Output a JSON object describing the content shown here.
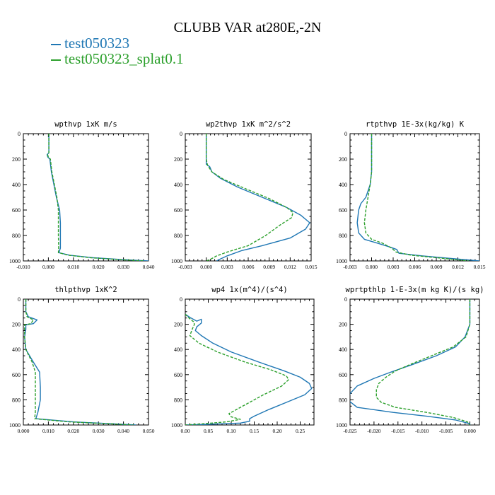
{
  "title": "CLUBB VAR at280E,-2N",
  "legend": [
    {
      "label": "test050323",
      "color": "#1f77b4"
    },
    {
      "label": "test050323_splat0.1",
      "color": "#2ca02c"
    }
  ],
  "chart_data": [
    {
      "type": "line",
      "title": "wpthvp  1xK m/s",
      "xlim": [
        -0.01,
        0.04
      ],
      "xticks": [
        "-0.010",
        "0.000",
        "0.010",
        "0.020",
        "0.030",
        "0.040"
      ],
      "ylim": [
        1000,
        0
      ],
      "yticks": [
        "0",
        "200",
        "400",
        "600",
        "800",
        "1000"
      ],
      "series": [
        {
          "color": "#1f77b4",
          "dash": false,
          "points": [
            [
              0.0002,
              0
            ],
            [
              0.0002,
              150
            ],
            [
              -0.0005,
              165
            ],
            [
              -0.0002,
              185
            ],
            [
              0.0006,
              200
            ],
            [
              0.0012,
              300
            ],
            [
              0.0022,
              400
            ],
            [
              0.0032,
              500
            ],
            [
              0.0045,
              600
            ],
            [
              0.0048,
              700
            ],
            [
              0.0048,
              800
            ],
            [
              0.0048,
              900
            ],
            [
              0.0042,
              935
            ],
            [
              0.0085,
              955
            ],
            [
              0.018,
              975
            ],
            [
              0.03,
              990
            ],
            [
              0.04,
              1000
            ]
          ]
        },
        {
          "color": "#2ca02c",
          "dash": true,
          "points": [
            [
              0.0002,
              0
            ],
            [
              0.0002,
              150
            ],
            [
              -0.0003,
              165
            ],
            [
              0.0,
              185
            ],
            [
              0.0008,
              200
            ],
            [
              0.0014,
              300
            ],
            [
              0.0024,
              400
            ],
            [
              0.0034,
              500
            ],
            [
              0.004,
              600
            ],
            [
              0.004,
              700
            ],
            [
              0.004,
              800
            ],
            [
              0.0041,
              900
            ],
            [
              0.004,
              935
            ],
            [
              0.008,
              955
            ],
            [
              0.017,
              975
            ],
            [
              0.029,
              990
            ],
            [
              0.038,
              1000
            ]
          ]
        }
      ]
    },
    {
      "type": "line",
      "title": "wp2thvp  1xK m^2/s^2",
      "xlim": [
        -0.003,
        0.015
      ],
      "xticks": [
        "-0.003",
        "0.000",
        "0.003",
        "0.006",
        "0.009",
        "0.012",
        "0.015"
      ],
      "ylim": [
        1000,
        0
      ],
      "yticks": [
        "0",
        "200",
        "400",
        "600",
        "800",
        "1000"
      ],
      "series": [
        {
          "color": "#1f77b4",
          "dash": false,
          "points": [
            [
              0.0,
              0
            ],
            [
              0.0,
              240
            ],
            [
              0.0005,
              260
            ],
            [
              0.0008,
              300
            ],
            [
              0.002,
              350
            ],
            [
              0.0045,
              420
            ],
            [
              0.008,
              500
            ],
            [
              0.0115,
              580
            ],
            [
              0.0135,
              640
            ],
            [
              0.0148,
              700
            ],
            [
              0.0142,
              750
            ],
            [
              0.012,
              820
            ],
            [
              0.008,
              880
            ],
            [
              0.005,
              920
            ],
            [
              0.003,
              960
            ],
            [
              0.0018,
              990
            ],
            [
              0.0015,
              1000
            ]
          ]
        },
        {
          "color": "#2ca02c",
          "dash": true,
          "points": [
            [
              0.0,
              0
            ],
            [
              0.0,
              200
            ],
            [
              0.0002,
              250
            ],
            [
              0.0008,
              300
            ],
            [
              0.0025,
              360
            ],
            [
              0.0055,
              430
            ],
            [
              0.009,
              510
            ],
            [
              0.0115,
              580
            ],
            [
              0.0124,
              620
            ],
            [
              0.0122,
              660
            ],
            [
              0.0105,
              720
            ],
            [
              0.0085,
              800
            ],
            [
              0.006,
              880
            ],
            [
              0.003,
              930
            ],
            [
              0.0015,
              960
            ],
            [
              0.0005,
              990
            ],
            [
              0.0,
              1000
            ]
          ]
        }
      ]
    },
    {
      "type": "line",
      "title": "rtpthvp  1E-3x(kg/kg) K",
      "xlim": [
        -0.003,
        0.015
      ],
      "xticks": [
        "-0.003",
        "0.000",
        "0.003",
        "0.006",
        "0.009",
        "0.012",
        "0.015"
      ],
      "ylim": [
        1000,
        0
      ],
      "yticks": [
        "0",
        "200",
        "400",
        "600",
        "800",
        "1000"
      ],
      "series": [
        {
          "color": "#1f77b4",
          "dash": false,
          "points": [
            [
              0.0,
              0
            ],
            [
              0.0,
              300
            ],
            [
              -0.0002,
              400
            ],
            [
              -0.0008,
              500
            ],
            [
              -0.0015,
              550
            ],
            [
              -0.0018,
              600
            ],
            [
              -0.002,
              700
            ],
            [
              -0.0018,
              780
            ],
            [
              -0.001,
              830
            ],
            [
              0.0008,
              860
            ],
            [
              0.0025,
              890
            ],
            [
              0.0035,
              910
            ],
            [
              0.0038,
              940
            ],
            [
              0.007,
              960
            ],
            [
              0.012,
              985
            ],
            [
              0.015,
              1000
            ]
          ]
        },
        {
          "color": "#2ca02c",
          "dash": true,
          "points": [
            [
              0.0,
              0
            ],
            [
              0.0,
              300
            ],
            [
              -0.0002,
              400
            ],
            [
              -0.0005,
              500
            ],
            [
              -0.0008,
              600
            ],
            [
              -0.001,
              700
            ],
            [
              -0.0008,
              780
            ],
            [
              0.0,
              830
            ],
            [
              0.0015,
              860
            ],
            [
              0.0028,
              900
            ],
            [
              0.0034,
              930
            ],
            [
              0.0055,
              955
            ],
            [
              0.01,
              980
            ],
            [
              0.0135,
              1000
            ]
          ]
        }
      ]
    },
    {
      "type": "line",
      "title": "thlpthvp  1xK^2",
      "xlim": [
        0.0,
        0.05
      ],
      "xticks": [
        "0.000",
        "0.010",
        "0.020",
        "0.030",
        "0.040",
        "0.050"
      ],
      "ylim": [
        1000,
        0
      ],
      "yticks": [
        "0",
        "200",
        "400",
        "600",
        "800",
        "1000"
      ],
      "series": [
        {
          "color": "#1f77b4",
          "dash": false,
          "points": [
            [
              0.001,
              0
            ],
            [
              0.001,
              100
            ],
            [
              0.002,
              140
            ],
            [
              0.0055,
              165
            ],
            [
              0.004,
              195
            ],
            [
              0.001,
              205
            ],
            [
              0.001,
              240
            ],
            [
              0.0005,
              300
            ],
            [
              0.001,
              400
            ],
            [
              0.004,
              500
            ],
            [
              0.0065,
              580
            ],
            [
              0.0068,
              700
            ],
            [
              0.0068,
              800
            ],
            [
              0.0058,
              900
            ],
            [
              0.005,
              950
            ],
            [
              0.02,
              975
            ],
            [
              0.035,
              990
            ],
            [
              0.045,
              1000
            ]
          ]
        },
        {
          "color": "#2ca02c",
          "dash": true,
          "points": [
            [
              0.001,
              0
            ],
            [
              0.001,
              100
            ],
            [
              0.0015,
              140
            ],
            [
              0.004,
              165
            ],
            [
              0.003,
              195
            ],
            [
              0.0005,
              205
            ],
            [
              0.0005,
              240
            ],
            [
              0.0005,
              300
            ],
            [
              0.001,
              400
            ],
            [
              0.0035,
              500
            ],
            [
              0.0048,
              580
            ],
            [
              0.0048,
              700
            ],
            [
              0.0048,
              800
            ],
            [
              0.0048,
              900
            ],
            [
              0.0045,
              950
            ],
            [
              0.018,
              975
            ],
            [
              0.034,
              990
            ],
            [
              0.044,
              1000
            ]
          ]
        }
      ]
    },
    {
      "type": "line",
      "title": "wp4  1x(m^4)/(s^4)",
      "xlim": [
        0.0,
        0.28
      ],
      "xticks": [
        "0.00",
        "0.05",
        "0.10",
        "0.15",
        "0.20",
        "0.25"
      ],
      "ylim": [
        1000,
        0
      ],
      "yticks": [
        "0",
        "200",
        "400",
        "600",
        "800",
        "1000"
      ],
      "series": [
        {
          "color": "#1f77b4",
          "dash": false,
          "points": [
            [
              0.0,
              120
            ],
            [
              0.01,
              145
            ],
            [
              0.025,
              175
            ],
            [
              0.035,
              160
            ],
            [
              0.035,
              190
            ],
            [
              0.025,
              220
            ],
            [
              0.022,
              250
            ],
            [
              0.035,
              290
            ],
            [
              0.06,
              350
            ],
            [
              0.1,
              420
            ],
            [
              0.16,
              500
            ],
            [
              0.215,
              570
            ],
            [
              0.25,
              620
            ],
            [
              0.27,
              670
            ],
            [
              0.275,
              710
            ],
            [
              0.26,
              760
            ],
            [
              0.22,
              820
            ],
            [
              0.18,
              880
            ],
            [
              0.15,
              930
            ],
            [
              0.14,
              950
            ],
            [
              0.14,
              970
            ],
            [
              0.12,
              985
            ],
            [
              0.05,
              995
            ],
            [
              0.0,
              1000
            ]
          ]
        },
        {
          "color": "#2ca02c",
          "dash": true,
          "points": [
            [
              0.0,
              120
            ],
            [
              0.008,
              150
            ],
            [
              0.018,
              180
            ],
            [
              0.02,
              200
            ],
            [
              0.015,
              240
            ],
            [
              0.01,
              290
            ],
            [
              0.03,
              350
            ],
            [
              0.07,
              420
            ],
            [
              0.13,
              500
            ],
            [
              0.185,
              560
            ],
            [
              0.22,
              610
            ],
            [
              0.225,
              640
            ],
            [
              0.21,
              690
            ],
            [
              0.17,
              760
            ],
            [
              0.14,
              820
            ],
            [
              0.11,
              880
            ],
            [
              0.095,
              910
            ],
            [
              0.1,
              935
            ],
            [
              0.12,
              955
            ],
            [
              0.09,
              975
            ],
            [
              0.04,
              990
            ],
            [
              0.0,
              1000
            ]
          ]
        }
      ]
    },
    {
      "type": "line",
      "title": "wprtpthlp  1-E-3x(m kg K)/(s kg)",
      "xlim": [
        -0.025,
        0.002
      ],
      "xticks": [
        "-0.025",
        "-0.020",
        "-0.015",
        "-0.010",
        "-0.005",
        "0.000"
      ],
      "ylim": [
        1000,
        0
      ],
      "yticks": [
        "0",
        "200",
        "400",
        "600",
        "800",
        "1000"
      ],
      "series": [
        {
          "color": "#1f77b4",
          "dash": false,
          "points": [
            [
              0.0,
              0
            ],
            [
              0.0,
              200
            ],
            [
              -0.001,
              300
            ],
            [
              -0.003,
              380
            ],
            [
              -0.007,
              450
            ],
            [
              -0.012,
              520
            ],
            [
              -0.0165,
              580
            ],
            [
              -0.02,
              630
            ],
            [
              -0.0235,
              690
            ],
            [
              -0.025,
              750
            ],
            [
              -0.0255,
              800
            ],
            [
              -0.0235,
              860
            ],
            [
              -0.016,
              900
            ],
            [
              -0.009,
              930
            ],
            [
              -0.003,
              960
            ],
            [
              0.0,
              990
            ],
            [
              0.0,
              1000
            ]
          ]
        },
        {
          "color": "#2ca02c",
          "dash": true,
          "points": [
            [
              0.0,
              0
            ],
            [
              0.0,
              200
            ],
            [
              -0.0008,
              300
            ],
            [
              -0.0035,
              380
            ],
            [
              -0.008,
              450
            ],
            [
              -0.0125,
              520
            ],
            [
              -0.0155,
              570
            ],
            [
              -0.0175,
              620
            ],
            [
              -0.019,
              670
            ],
            [
              -0.0195,
              720
            ],
            [
              -0.0195,
              780
            ],
            [
              -0.0185,
              820
            ],
            [
              -0.0155,
              860
            ],
            [
              -0.009,
              900
            ],
            [
              -0.0035,
              940
            ],
            [
              -0.0005,
              975
            ],
            [
              0.0,
              1000
            ]
          ]
        }
      ]
    }
  ]
}
